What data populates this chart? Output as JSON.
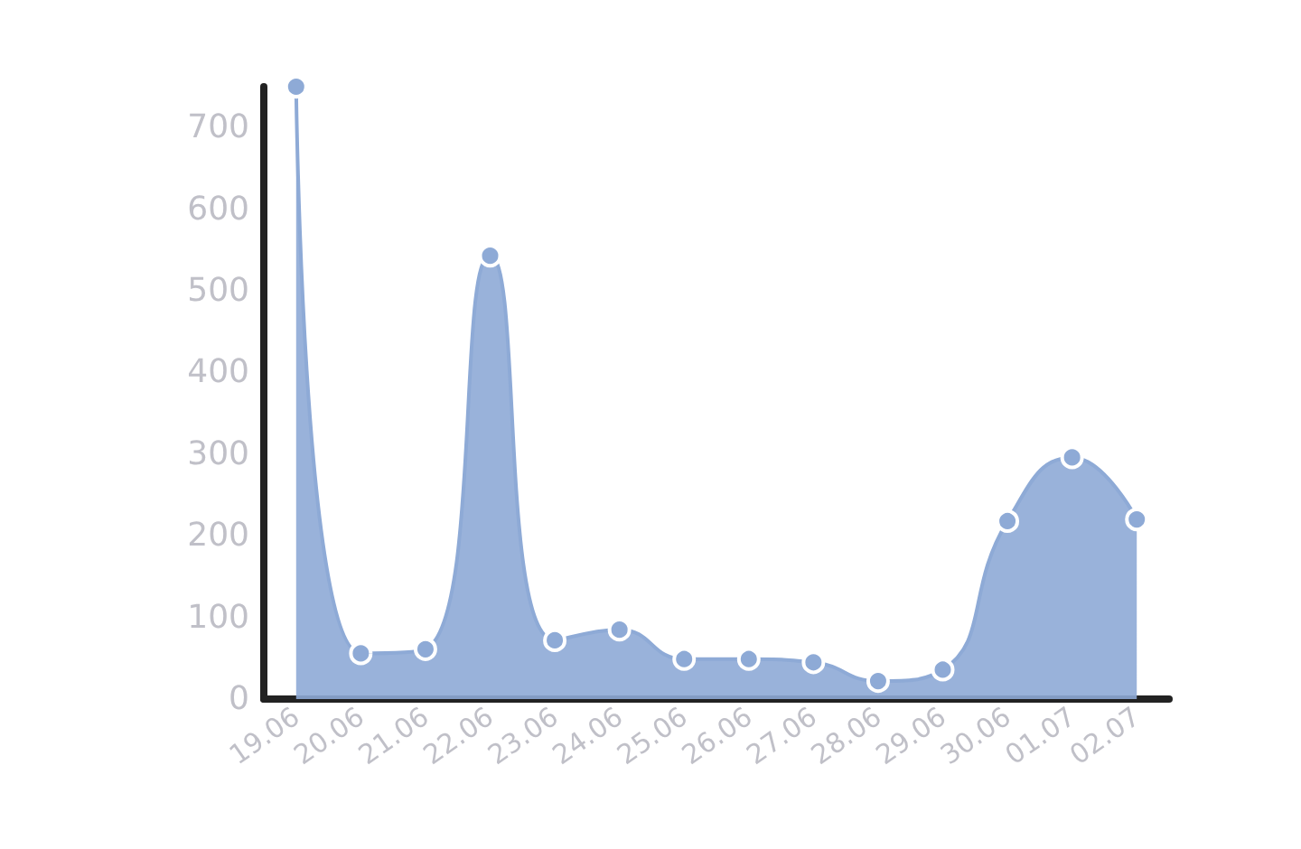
{
  "chart_data": {
    "type": "area",
    "categories": [
      "19.06",
      "20.06",
      "21.06",
      "22.06",
      "23.06",
      "24.06",
      "25.06",
      "26.06",
      "27.06",
      "28.06",
      "29.06",
      "30.06",
      "01.07",
      "02.07"
    ],
    "series": [
      {
        "color": "#8eaad6",
        "values": [
          750,
          56,
          61,
          543,
          72,
          85,
          49,
          49,
          45,
          22,
          36,
          218,
          296,
          220
        ]
      }
    ],
    "ylim": [
      0,
      750
    ],
    "yticks": [
      0,
      100,
      200,
      300,
      400,
      500,
      600,
      700
    ],
    "grid": false,
    "marker": "circle"
  }
}
